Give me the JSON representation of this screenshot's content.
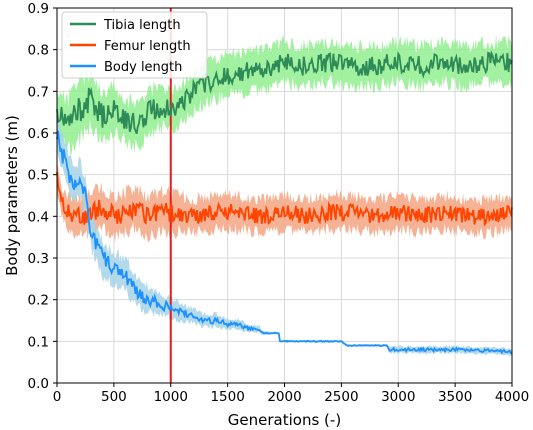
{
  "chart_data": {
    "type": "line",
    "title": "",
    "xlabel": "Generations (-)",
    "ylabel": "Body parameters (m)",
    "xlim": [
      0,
      4000
    ],
    "ylim": [
      0,
      0.9
    ],
    "xticks": [
      "0",
      "500",
      "1000",
      "1500",
      "2000",
      "2500",
      "3000",
      "3500",
      "4000"
    ],
    "yticks": [
      "0.0",
      "0.1",
      "0.2",
      "0.3",
      "0.4",
      "0.5",
      "0.6",
      "0.7",
      "0.8",
      "0.9"
    ],
    "grid": true,
    "legend_position": "top-left",
    "vertical_marker": {
      "x": 1000,
      "color": "#e8191b"
    },
    "series": [
      {
        "name": "Tibia length",
        "color": "#2e8b57",
        "band_color": "#90ee90",
        "x": [
          0,
          100,
          200,
          300,
          400,
          500,
          600,
          700,
          800,
          900,
          1000,
          1100,
          1200,
          1300,
          1400,
          1500,
          1600,
          1700,
          1800,
          1900,
          2000,
          2200,
          2400,
          2600,
          2800,
          3000,
          3200,
          3400,
          3600,
          3800,
          4000
        ],
        "values": [
          0.65,
          0.62,
          0.66,
          0.68,
          0.64,
          0.66,
          0.63,
          0.62,
          0.65,
          0.66,
          0.66,
          0.67,
          0.7,
          0.72,
          0.73,
          0.74,
          0.74,
          0.75,
          0.75,
          0.76,
          0.77,
          0.76,
          0.77,
          0.76,
          0.76,
          0.77,
          0.76,
          0.77,
          0.76,
          0.77,
          0.77
        ],
        "spread": [
          0.06,
          0.08,
          0.09,
          0.08,
          0.07,
          0.07,
          0.06,
          0.07,
          0.07,
          0.06,
          0.06,
          0.06,
          0.06,
          0.06,
          0.06,
          0.06,
          0.06,
          0.06,
          0.06,
          0.06,
          0.06,
          0.06,
          0.06,
          0.06,
          0.06,
          0.06,
          0.06,
          0.06,
          0.06,
          0.06,
          0.06
        ]
      },
      {
        "name": "Femur length",
        "color": "#ff4500",
        "band_color": "#f4a582",
        "x": [
          0,
          50,
          100,
          200,
          300,
          400,
          500,
          600,
          700,
          800,
          900,
          1000,
          1200,
          1400,
          1600,
          1800,
          2000,
          2200,
          2400,
          2600,
          2800,
          3000,
          3200,
          3400,
          3600,
          3800,
          4000
        ],
        "values": [
          0.5,
          0.43,
          0.41,
          0.4,
          0.41,
          0.42,
          0.4,
          0.41,
          0.42,
          0.4,
          0.41,
          0.41,
          0.4,
          0.41,
          0.41,
          0.4,
          0.41,
          0.4,
          0.41,
          0.41,
          0.4,
          0.41,
          0.4,
          0.41,
          0.4,
          0.4,
          0.41
        ],
        "spread": [
          0.04,
          0.04,
          0.05,
          0.06,
          0.06,
          0.06,
          0.06,
          0.06,
          0.06,
          0.06,
          0.06,
          0.06,
          0.05,
          0.05,
          0.05,
          0.05,
          0.05,
          0.05,
          0.05,
          0.05,
          0.05,
          0.05,
          0.05,
          0.05,
          0.05,
          0.05,
          0.05
        ]
      },
      {
        "name": "Body length",
        "color": "#1e90ff",
        "band_color": "#a6d4e6",
        "x": [
          0,
          50,
          100,
          150,
          200,
          250,
          300,
          400,
          500,
          600,
          700,
          800,
          900,
          1000,
          1100,
          1200,
          1300,
          1400,
          1500,
          1600,
          1700,
          1780,
          1800,
          1950,
          1960,
          2500,
          2550,
          2900,
          2920,
          3500,
          4000
        ],
        "values": [
          0.6,
          0.55,
          0.5,
          0.48,
          0.49,
          0.45,
          0.36,
          0.3,
          0.27,
          0.26,
          0.22,
          0.2,
          0.19,
          0.18,
          0.17,
          0.16,
          0.15,
          0.15,
          0.14,
          0.14,
          0.13,
          0.13,
          0.12,
          0.12,
          0.1,
          0.1,
          0.09,
          0.09,
          0.08,
          0.08,
          0.075
        ],
        "spread": [
          0.05,
          0.06,
          0.06,
          0.05,
          0.05,
          0.05,
          0.05,
          0.05,
          0.05,
          0.05,
          0.04,
          0.04,
          0.03,
          0.03,
          0.025,
          0.02,
          0.02,
          0.02,
          0.015,
          0.015,
          0.01,
          0.01,
          0.005,
          0.003,
          0.003,
          0.003,
          0.003,
          0.003,
          0.01,
          0.01,
          0.01
        ]
      }
    ]
  }
}
